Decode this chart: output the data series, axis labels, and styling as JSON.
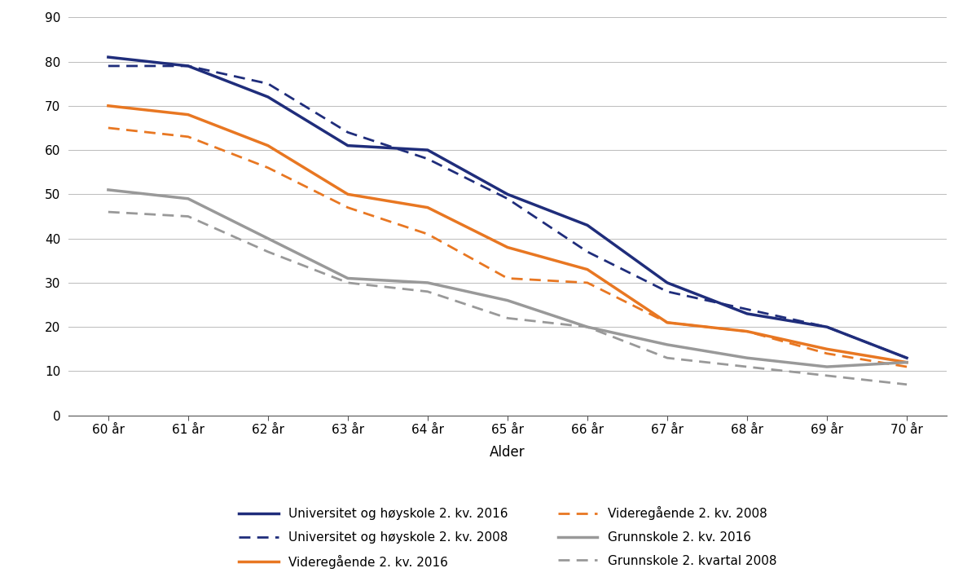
{
  "ages": [
    60,
    61,
    62,
    63,
    64,
    65,
    66,
    67,
    68,
    69,
    70
  ],
  "age_labels": [
    "60 år",
    "61 år",
    "62 år",
    "63 år",
    "64 år",
    "65 år",
    "66 år",
    "67 år",
    "68 år",
    "69 år",
    "70 år"
  ],
  "uni_2016": [
    81,
    79,
    72,
    61,
    60,
    50,
    43,
    30,
    23,
    20,
    13
  ],
  "uni_2008": [
    79,
    79,
    75,
    64,
    58,
    49,
    37,
    28,
    24,
    20,
    13
  ],
  "vgs_2016": [
    70,
    68,
    61,
    50,
    47,
    38,
    33,
    21,
    19,
    15,
    12
  ],
  "vgs_2008": [
    65,
    63,
    56,
    47,
    41,
    31,
    30,
    21,
    19,
    14,
    11
  ],
  "grunn_2016": [
    51,
    49,
    40,
    31,
    30,
    26,
    20,
    16,
    13,
    11,
    12
  ],
  "grunn_2008": [
    46,
    45,
    37,
    30,
    28,
    22,
    20,
    13,
    11,
    9,
    7
  ],
  "color_uni": "#1f2d7b",
  "color_vgs": "#e87722",
  "color_grunn": "#999999",
  "xlabel": "Alder",
  "ylim": [
    0,
    90
  ],
  "yticks": [
    0,
    10,
    20,
    30,
    40,
    50,
    60,
    70,
    80,
    90
  ],
  "legend_uni_2016": "Universitet og høyskole 2. kv. 2016",
  "legend_uni_2008": "Universitet og høyskole 2. kv. 2008",
  "legend_vgs_2016": "Videregående 2. kv. 2016",
  "legend_vgs_2008": "Videregående 2. kv. 2008",
  "legend_grunn_2016": "Grunnskole 2. kv. 2016",
  "legend_grunn_2008": "Grunnskole 2. kvartal 2008",
  "linewidth_solid": 2.5,
  "linewidth_dashed": 2.0,
  "background_color": "#ffffff"
}
